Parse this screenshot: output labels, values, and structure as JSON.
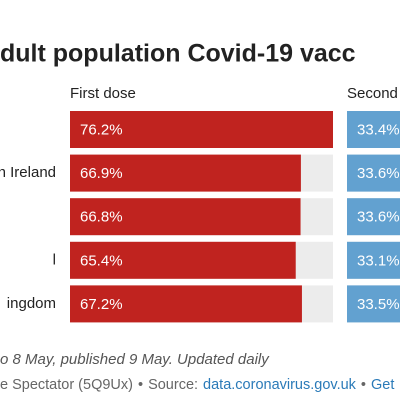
{
  "chart_data": {
    "type": "bar",
    "title": "dult population Covid-19 vacc",
    "categories": [
      null,
      "n Ireland",
      null,
      "l",
      "ingdom"
    ],
    "series": [
      {
        "name": "First dose",
        "color": "#c0231f",
        "track": "#ececec",
        "values": [
          76.2,
          66.9,
          66.8,
          65.4,
          67.2
        ],
        "value_labels": [
          "76.2%",
          "66.9%",
          "66.8%",
          "65.4%",
          "67.2%"
        ],
        "xlim": [
          0,
          76.2
        ]
      },
      {
        "name": "Second",
        "color": "#62a1d0",
        "track": "#ececec",
        "values": [
          33.4,
          33.6,
          33.6,
          33.1,
          33.5
        ],
        "value_labels": [
          "33.4%",
          "33.6%",
          "33.6%",
          "33.1%",
          "33.5%"
        ],
        "xlim": [
          0,
          76.2
        ]
      }
    ],
    "notes": "o 8 May, published 9 May. Updated daily",
    "source": {
      "prefix": "e Spectator (5Q9Ux)",
      "separator": "•",
      "label": "Source:",
      "link": "data.coronavirus.gov.uk",
      "get": "Get"
    }
  }
}
